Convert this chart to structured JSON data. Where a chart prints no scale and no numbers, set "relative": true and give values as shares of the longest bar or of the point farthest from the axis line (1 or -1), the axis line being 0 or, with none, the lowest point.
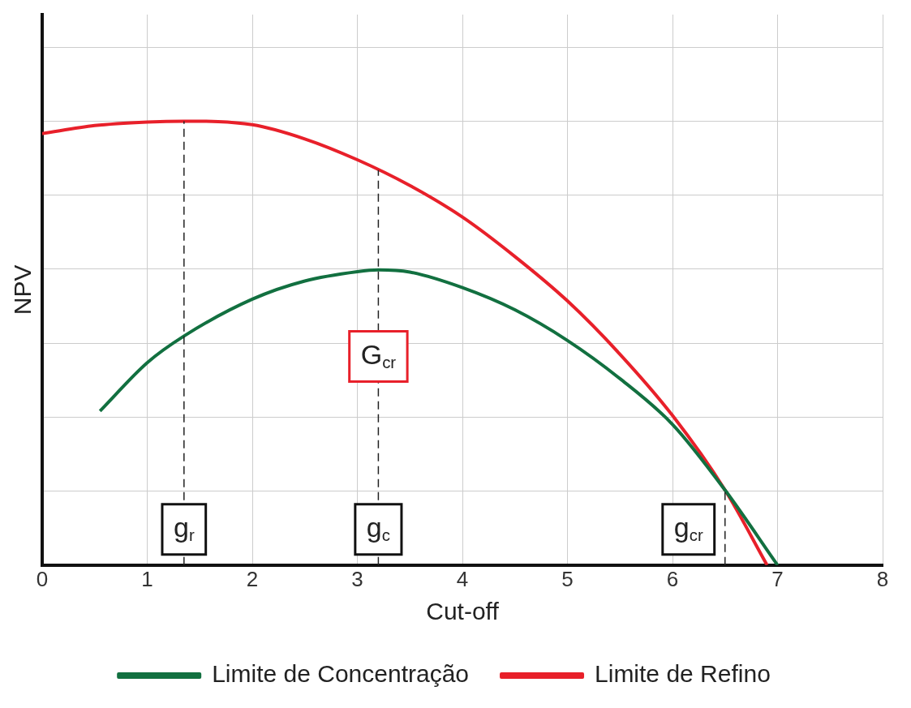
{
  "chart_data": {
    "type": "line",
    "xlabel": "Cut-off",
    "ylabel": "NPV",
    "relative": true,
    "xlim": [
      0,
      8
    ],
    "xticks": [
      0,
      1,
      2,
      3,
      4,
      5,
      6,
      7,
      8
    ],
    "grid": true,
    "legend": "bottom",
    "marker": "none",
    "line_style": "solid",
    "series": [
      {
        "name": "Limite de Concentração",
        "color": "#127040",
        "x": [
          0.55,
          1,
          1.35,
          2,
          2.5,
          3,
          3.2,
          3.5,
          4,
          4.5,
          5,
          5.5,
          6,
          6.5,
          7
        ],
        "values": [
          0.347,
          0.456,
          0.516,
          0.599,
          0.64,
          0.661,
          0.665,
          0.66,
          0.625,
          0.575,
          0.506,
          0.42,
          0.317,
          0.169,
          0
        ]
      },
      {
        "name": "Limite de Refino",
        "color": "#e8202a",
        "x": [
          0,
          0.5,
          1,
          1.35,
          2,
          2.5,
          3,
          3.5,
          4,
          4.5,
          5,
          5.5,
          6,
          6.5,
          6.9
        ],
        "values": [
          0.972,
          0.99,
          0.998,
          1,
          0.992,
          0.96,
          0.913,
          0.855,
          0.784,
          0.695,
          0.595,
          0.475,
          0.337,
          0.169,
          0
        ]
      }
    ],
    "ref_lines": [
      {
        "axis": "x",
        "value": 1.35,
        "label": "g$_{r}$",
        "line_style": "dashed"
      },
      {
        "axis": "x",
        "value": 3.2,
        "label": "g$_{c}$",
        "line_style": "dashed"
      },
      {
        "axis": "x",
        "value": 6.5,
        "label": "g$_{cr}$",
        "line_style": "dashed"
      }
    ],
    "annotations": [
      {
        "text": "G$_{cr}$",
        "x": 3.2,
        "y": 0.47
      }
    ]
  }
}
